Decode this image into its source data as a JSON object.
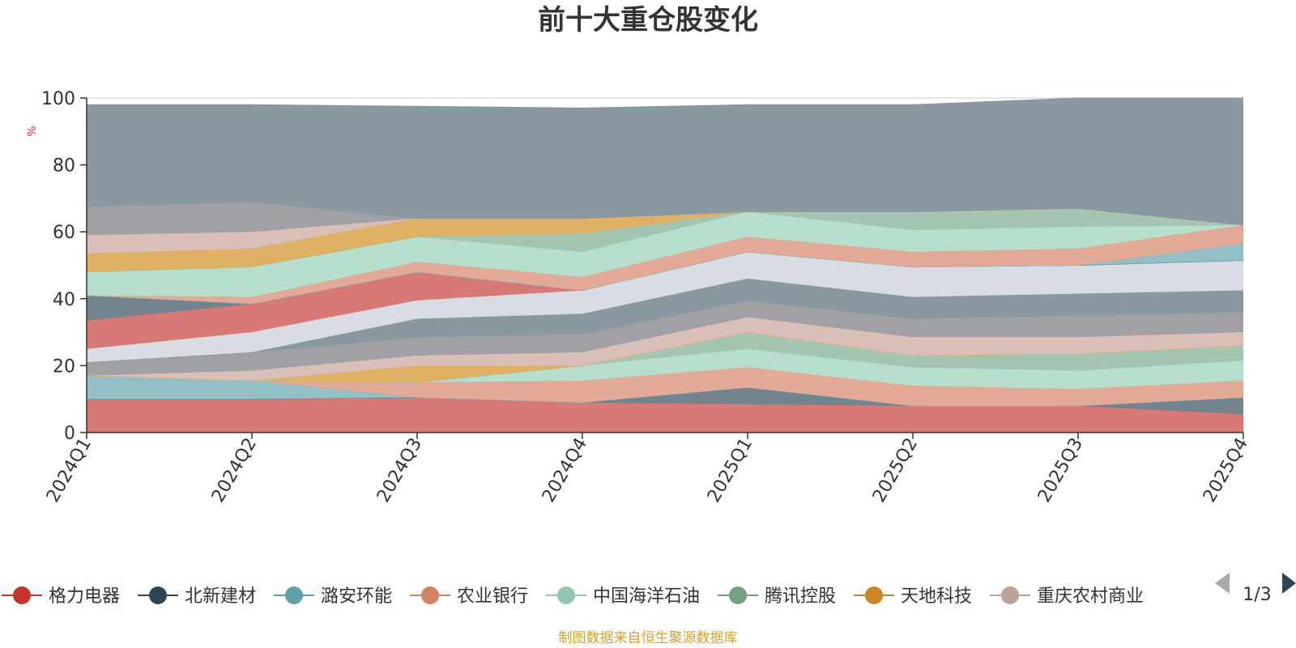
{
  "chart_data": {
    "type": "area",
    "title": "前十大重仓股变化",
    "ylabel": "%",
    "ylim": [
      0,
      100
    ],
    "yticks": [
      0,
      20,
      40,
      60,
      80,
      100
    ],
    "grid": true,
    "categories": [
      "2024Q1",
      "2024Q2",
      "2024Q3",
      "2024Q4",
      "2025Q1",
      "2025Q2",
      "2025Q3",
      "2025Q4"
    ],
    "layers": [
      {
        "color": "#d5726f",
        "bottom": [
          0,
          0,
          0,
          0,
          0,
          0,
          0,
          0
        ],
        "top": [
          10,
          10,
          10.5,
          9,
          8.5,
          8,
          8,
          5.5
        ]
      },
      {
        "color": "#6c7d89",
        "bottom": [
          10,
          10,
          10.5,
          9,
          8.5,
          8,
          8,
          5.5
        ],
        "top": [
          10,
          10,
          10.5,
          9,
          13.5,
          8,
          8,
          10.5
        ]
      },
      {
        "color": "#8dbcc3",
        "bottom": [
          10,
          10,
          10.5,
          9,
          13.5,
          8,
          8,
          10.5
        ],
        "top": [
          17,
          15.5,
          10.5,
          9,
          13.5,
          8,
          8,
          10.5
        ]
      },
      {
        "color": "#e0a591",
        "bottom": [
          17,
          15.5,
          10.5,
          9,
          13.5,
          8,
          8,
          10.5
        ],
        "top": [
          17,
          15.5,
          15,
          15.5,
          19.5,
          14,
          13,
          15.5
        ]
      },
      {
        "color": "#b3dcc9",
        "bottom": [
          17,
          15.5,
          15,
          15.5,
          19.5,
          14,
          13,
          15.5
        ],
        "top": [
          17,
          15.5,
          15,
          20,
          25,
          19.5,
          18.5,
          21.5
        ]
      },
      {
        "color": "#9fc2ae",
        "bottom": [
          17,
          15.5,
          15,
          20,
          25,
          19.5,
          18.5,
          21.5
        ],
        "top": [
          17,
          15.5,
          15,
          20,
          30,
          23,
          23.5,
          26
        ]
      },
      {
        "color": "#dcad5d",
        "bottom": [
          17,
          15.5,
          15,
          20,
          30,
          23,
          23.5,
          26
        ],
        "top": [
          17,
          15.5,
          20,
          20,
          30,
          23,
          23.5,
          26
        ]
      },
      {
        "color": "#d8bcb4",
        "bottom": [
          17,
          15.5,
          20,
          20,
          30,
          23,
          23.5,
          26
        ],
        "top": [
          17,
          18.5,
          23,
          24,
          34.5,
          28.5,
          28.5,
          30
        ]
      },
      {
        "color": "#9c9ca0",
        "bottom": [
          17,
          18.5,
          23,
          24,
          34.5,
          28.5,
          28.5,
          30
        ],
        "top": [
          21,
          24,
          28.5,
          29.5,
          39.5,
          34,
          35,
          36
        ]
      },
      {
        "color": "#84929b",
        "bottom": [
          21,
          24,
          28.5,
          29.5,
          39.5,
          34,
          35,
          36
        ],
        "top": [
          21,
          24,
          34,
          35.5,
          46,
          40.5,
          41.5,
          42.5
        ]
      },
      {
        "color": "#d7dbe1",
        "bottom": [
          21,
          24,
          34,
          35.5,
          46,
          40.5,
          41.5,
          42.5
        ],
        "top": [
          25,
          30,
          39.5,
          42.5,
          54,
          49.5,
          50,
          51.5
        ]
      },
      {
        "color": "#d5726f",
        "bottom": [
          25,
          30,
          39.5,
          42.5,
          54,
          49.5,
          50,
          51.5
        ],
        "top": [
          33.5,
          38.5,
          48,
          42.5,
          54,
          49.5,
          50,
          51.5
        ]
      },
      {
        "color": "#6c7d89",
        "bottom": [
          33.5,
          38.5,
          48,
          42.5,
          54,
          49.5,
          50,
          51.5
        ],
        "top": [
          41,
          38.5,
          48,
          42.5,
          54,
          49.5,
          50,
          51.5
        ]
      },
      {
        "color": "#8dbcc3",
        "bottom": [
          41,
          38.5,
          48,
          42.5,
          54,
          49.5,
          50,
          51.5
        ],
        "top": [
          41,
          38.5,
          48,
          42.5,
          54,
          49.5,
          50,
          56.5
        ]
      },
      {
        "color": "#e0a591",
        "bottom": [
          41,
          38.5,
          48,
          42.5,
          54,
          49.5,
          50,
          56.5
        ],
        "top": [
          41,
          40.5,
          51,
          46.5,
          58.5,
          54,
          55,
          62
        ]
      },
      {
        "color": "#b3dcc9",
        "bottom": [
          41,
          40.5,
          51,
          46.5,
          58.5,
          54,
          55,
          62
        ],
        "top": [
          48,
          49.5,
          58.5,
          54,
          66,
          60.5,
          61.5,
          62
        ]
      },
      {
        "color": "#9fc2ae",
        "bottom": [
          48,
          49.5,
          58.5,
          54,
          66,
          60.5,
          61.5,
          62
        ],
        "top": [
          48,
          49.5,
          58.5,
          59.5,
          66,
          66,
          67,
          62
        ]
      },
      {
        "color": "#dcad5d",
        "bottom": [
          48,
          49.5,
          58.5,
          59.5,
          66,
          66,
          67,
          62
        ],
        "top": [
          53.5,
          55,
          64,
          64,
          66,
          66,
          67,
          62
        ]
      },
      {
        "color": "#d8bcb4",
        "bottom": [
          53.5,
          55,
          64,
          64,
          66,
          66,
          67,
          62
        ],
        "top": [
          59,
          60,
          64,
          64,
          66,
          66,
          67,
          62
        ]
      },
      {
        "color": "#9c9ca0",
        "bottom": [
          59,
          60,
          64,
          64,
          66,
          66,
          67,
          62
        ],
        "top": [
          67.5,
          69,
          64,
          64,
          66,
          66,
          67,
          62
        ]
      },
      {
        "color": "#84929b",
        "bottom": [
          67.5,
          69,
          64,
          64,
          66,
          66,
          67,
          62
        ],
        "top": [
          98,
          98,
          97.5,
          97,
          98,
          98,
          100,
          100
        ]
      }
    ],
    "legend": {
      "placement": "bottom",
      "page": "1/3",
      "entries": [
        {
          "name": "格力电器",
          "color": "#c23531"
        },
        {
          "name": "北新建材",
          "color": "#2f4554"
        },
        {
          "name": "潞安环能",
          "color": "#61a0a8"
        },
        {
          "name": "农业银行",
          "color": "#d48265"
        },
        {
          "name": "中国海洋石油",
          "color": "#91c7ae"
        },
        {
          "name": "腾讯控股",
          "color": "#749f83"
        },
        {
          "name": "天地科技",
          "color": "#ca8622"
        },
        {
          "name": "重庆农村商业",
          "color": "#bda29a"
        }
      ]
    },
    "source": "制图数据来自恒生聚源数据库"
  },
  "colors": {
    "title": "#333333",
    "unit_label": "#e03131",
    "source": "#d4a228",
    "axis": "#333333",
    "grid": "#cccccc",
    "pager_active": "#2f4554",
    "pager_inactive": "#aaaaaa"
  }
}
